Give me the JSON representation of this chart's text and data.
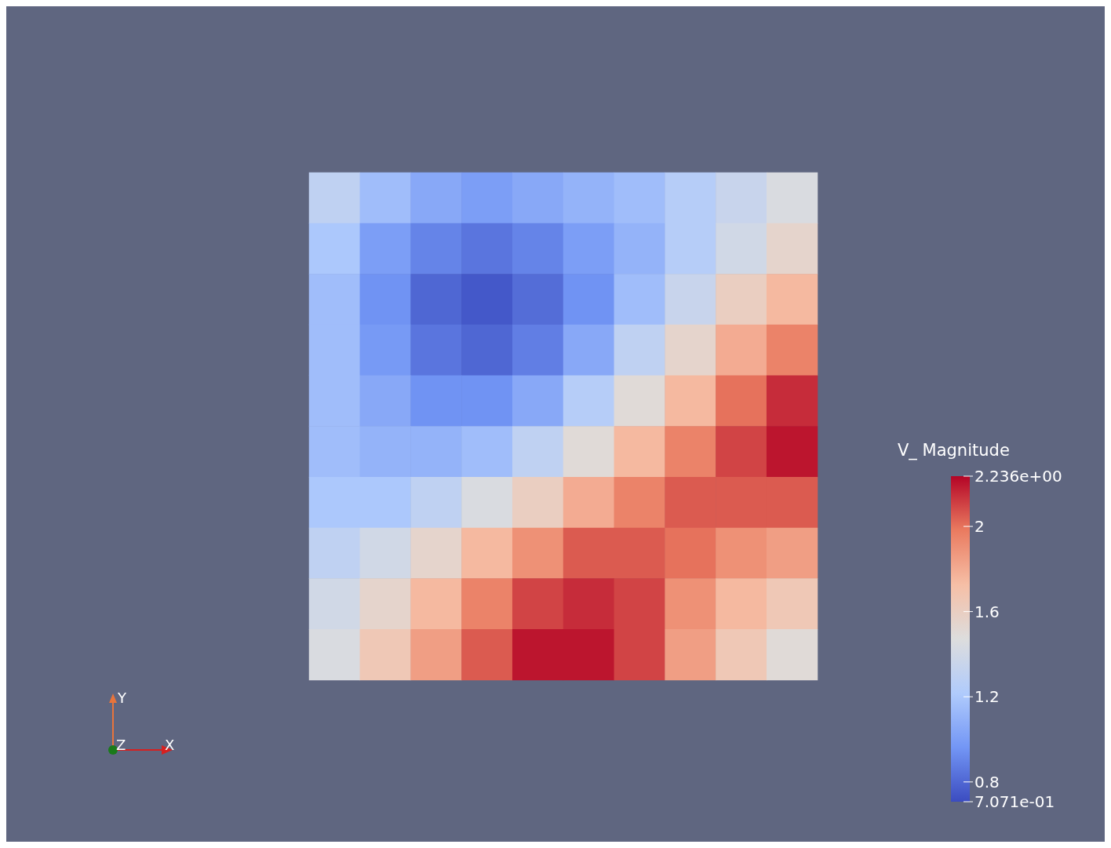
{
  "chart_data": {
    "type": "heatmap",
    "clabel": "V_ Magnitude",
    "categories": [
      null,
      null,
      null,
      null,
      null,
      null,
      null,
      null,
      null,
      null
    ],
    "y_categories": [
      null,
      null,
      null,
      null,
      null,
      null,
      null,
      null,
      null,
      null
    ],
    "cells": [
      [
        1.3,
        1.15,
        1.05,
        1.0,
        1.05,
        1.1,
        1.15,
        1.25,
        1.35,
        1.45
      ],
      [
        1.2,
        1.0,
        0.9,
        0.85,
        0.9,
        1.0,
        1.1,
        1.25,
        1.4,
        1.55
      ],
      [
        1.15,
        0.95,
        0.8,
        0.75,
        0.82,
        0.95,
        1.15,
        1.35,
        1.6,
        1.75
      ],
      [
        1.15,
        0.98,
        0.85,
        0.8,
        0.88,
        1.05,
        1.3,
        1.55,
        1.8,
        1.95
      ],
      [
        1.15,
        1.05,
        0.95,
        0.95,
        1.05,
        1.25,
        1.5,
        1.75,
        2.0,
        2.15
      ],
      [
        1.15,
        1.1,
        1.1,
        1.15,
        1.3,
        1.5,
        1.75,
        1.95,
        2.1,
        2.2
      ],
      [
        1.2,
        1.2,
        1.3,
        1.45,
        1.6,
        1.8,
        1.95,
        2.05,
        2.05,
        2.05
      ],
      [
        1.3,
        1.4,
        1.55,
        1.75,
        1.9,
        2.05,
        2.05,
        2.0,
        1.9,
        1.85
      ],
      [
        1.4,
        1.55,
        1.75,
        1.95,
        2.1,
        2.15,
        2.1,
        1.9,
        1.75,
        1.65
      ],
      [
        1.45,
        1.65,
        1.85,
        2.05,
        2.2,
        2.2,
        2.1,
        1.85,
        1.65,
        1.5
      ]
    ],
    "clim": [
      0.7071,
      2.236
    ],
    "cticks": [
      {
        "value": 2.236,
        "label": "2.236e+00"
      },
      2,
      1.6,
      1.2,
      0.8,
      {
        "value": 0.7071,
        "label": "7.071e-01"
      }
    ],
    "annotations": [
      "Y",
      "Z",
      "X"
    ]
  }
}
